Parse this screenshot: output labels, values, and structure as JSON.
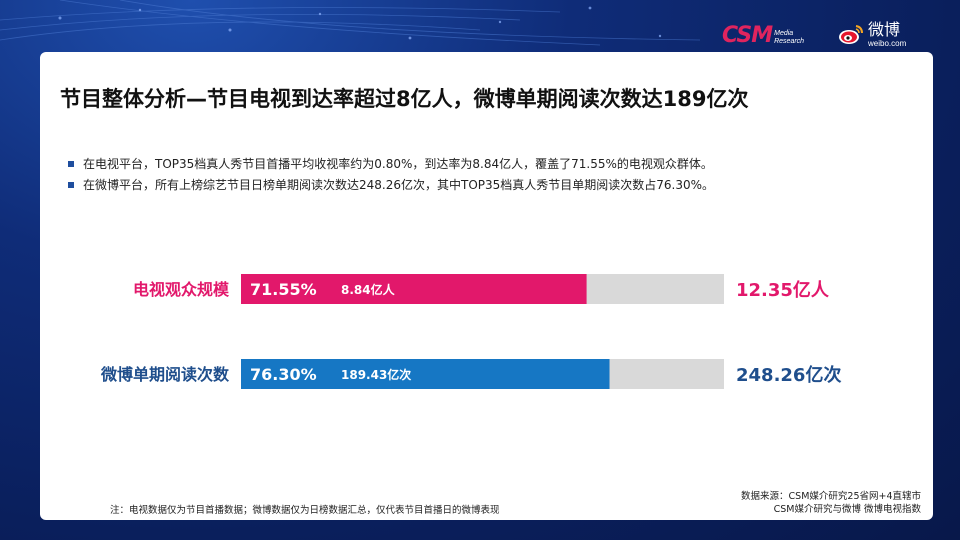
{
  "header": {
    "csm_logo": "CSM",
    "csm_logo_sub": [
      "Media",
      "Research"
    ],
    "weibo_logo_cn": "微博",
    "weibo_logo_en": "weibo.com"
  },
  "slide": {
    "title": "节目整体分析—节目电视到达率超过8亿人，微博单期阅读次数达189亿次",
    "bullets": [
      "在电视平台，TOP35档真人秀节目首播平均收视率约为0.80%，到达率为8.84亿人，覆盖了71.55%的电视观众群体。",
      "在微博平台，所有上榜综艺节目日榜单期阅读次数达248.26亿次，其中TOP35档真人秀节目单期阅读次数占76.30%。"
    ],
    "note": "注：电视数据仅为节目首播数据；微博数据仅为日榜数据汇总，仅代表节目首播日的微博表现",
    "source_lines": [
      "数据来源：CSM媒介研究25省网+4直辖市",
      "CSM媒介研究与微博 微博电视指数"
    ]
  },
  "chart_data": {
    "type": "bar",
    "orientation": "horizontal",
    "stacked_percent": true,
    "categories": [
      "电视观众规模",
      "微博单期阅读次数"
    ],
    "series": [
      {
        "values": [
          71.55,
          76.3
        ],
        "value_labels": [
          "71.55%",
          "76.30%"
        ],
        "amount_labels": [
          "8.84亿人",
          "189.43亿次"
        ]
      }
    ],
    "totals": [
      12.35,
      248.26
    ],
    "total_labels": [
      "12.35亿人",
      "248.26亿次"
    ],
    "xlim": [
      0,
      100
    ],
    "colors": {
      "bars": [
        "#e2186b",
        "#1677c4"
      ],
      "remainder": "#d9d9d9",
      "category_labels": [
        "#e2186b",
        "#1f4e8c"
      ],
      "total_labels": [
        "#e2186b",
        "#1f4e8c"
      ]
    },
    "grid": false,
    "legend": "none"
  }
}
